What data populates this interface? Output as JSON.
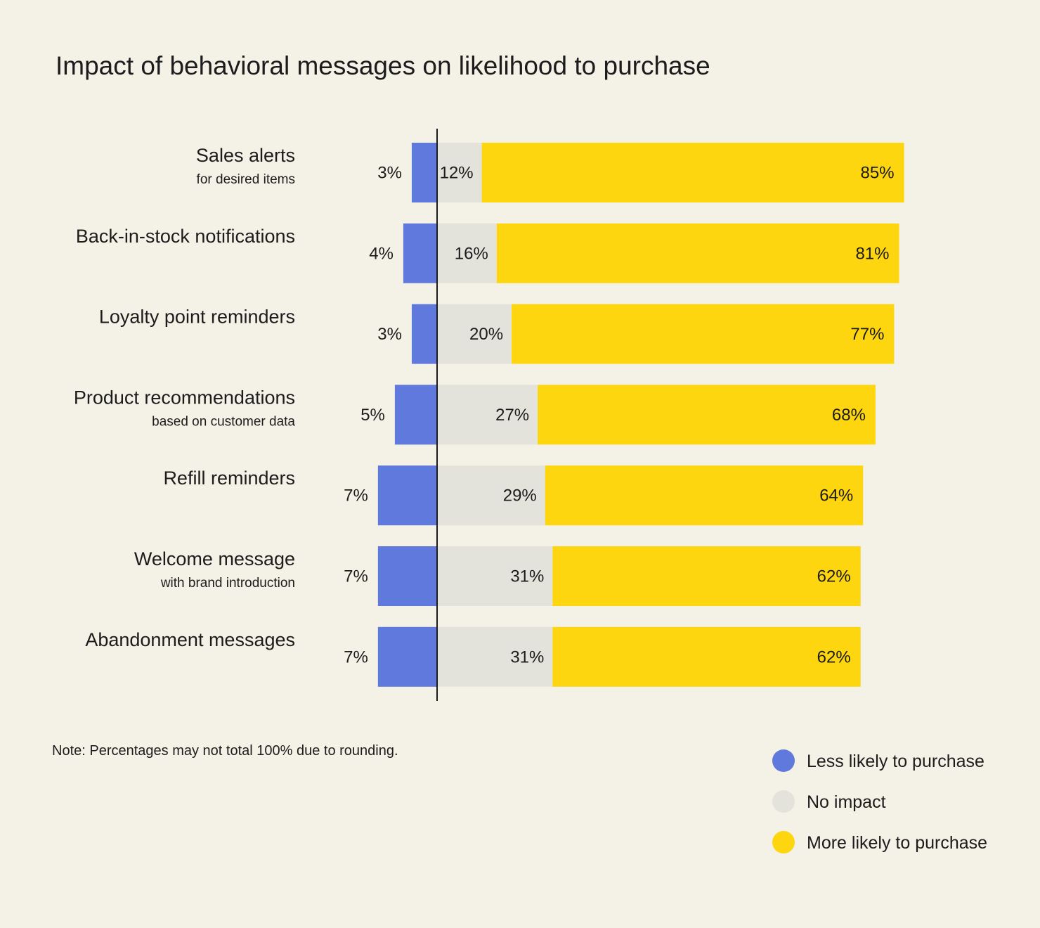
{
  "chart_data": {
    "type": "bar",
    "orientation": "horizontal",
    "stacked": true,
    "diverging": true,
    "title": "Impact of behavioral messages on likelihood to purchase",
    "categories": [
      "Sales alerts",
      "Back-in-stock notifications",
      "Loyalty point reminders",
      "Product recommendations",
      "Refill reminders",
      "Welcome message",
      "Abandonment messages"
    ],
    "category_sublabels": [
      "for desired items",
      "",
      "",
      "based on customer data",
      "",
      "with brand introduction",
      ""
    ],
    "series": [
      {
        "name": "Less likely to purchase",
        "color": "#6079DC",
        "side": "negative",
        "values": [
          3,
          4,
          3,
          5,
          7,
          7,
          7
        ],
        "labels": [
          "3%",
          "4%",
          "3%",
          "5%",
          "7%",
          "7%",
          "7%"
        ]
      },
      {
        "name": "No impact",
        "color": "#E4E3DB",
        "side": "positive",
        "values": [
          12,
          16,
          20,
          27,
          29,
          31,
          31
        ],
        "labels": [
          "12%",
          "16%",
          "20%",
          "27%",
          "29%",
          "31%",
          "31%"
        ]
      },
      {
        "name": "More likely to purchase",
        "color": "#FDD60F",
        "side": "positive",
        "values": [
          85,
          81,
          77,
          68,
          64,
          62,
          62
        ],
        "labels": [
          "85%",
          "81%",
          "77%",
          "68%",
          "64%",
          "62%",
          "62%"
        ]
      }
    ],
    "legend_position": "bottom-right",
    "grid": false
  },
  "note": "Note: Percentages may not total 100% due to rounding.",
  "colors": {
    "background": "#F4F1E6",
    "axis": "#1c1c1c",
    "text": "#1c1c1c"
  }
}
